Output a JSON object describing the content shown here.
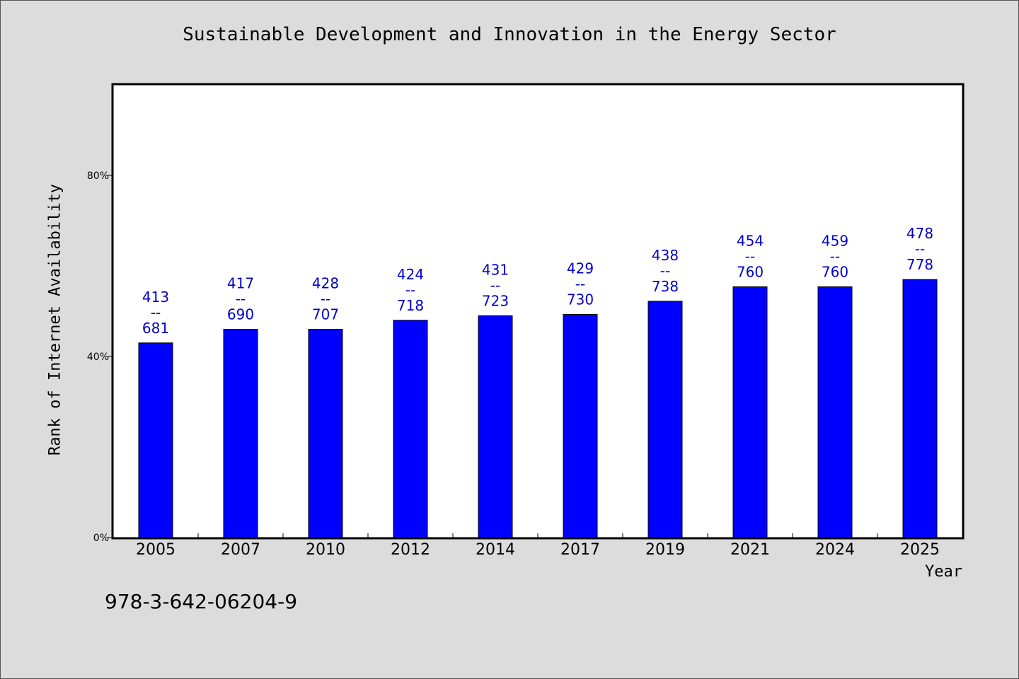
{
  "chart_data": {
    "type": "bar",
    "title": "Sustainable Development and Innovation in the Energy Sector",
    "xlabel": "Year",
    "ylabel": "Rank of Internet Availability",
    "categories": [
      "2005",
      "2007",
      "2010",
      "2012",
      "2014",
      "2017",
      "2019",
      "2021",
      "2024",
      "2025"
    ],
    "values": [
      43,
      46,
      46,
      48,
      49,
      49.3,
      52.2,
      55.4,
      55.4,
      57
    ],
    "bar_labels": [
      [
        "413",
        "--",
        "681"
      ],
      [
        "417",
        "--",
        "690"
      ],
      [
        "428",
        "--",
        "707"
      ],
      [
        "424",
        "--",
        "718"
      ],
      [
        "431",
        "--",
        "723"
      ],
      [
        "429",
        "--",
        "730"
      ],
      [
        "438",
        "--",
        "738"
      ],
      [
        "454",
        "--",
        "760"
      ],
      [
        "459",
        "--",
        "760"
      ],
      [
        "478",
        "--",
        "778"
      ]
    ],
    "yticks": [
      0,
      40,
      80
    ],
    "ytick_labels": [
      "0%",
      "40%",
      "80%"
    ],
    "ylim": [
      0,
      100
    ],
    "grid": false,
    "legend": "none",
    "bar_color": "#0000ff",
    "label_color": "#0000cc"
  },
  "footer": {
    "isbn": "978-3-642-06204-9"
  }
}
